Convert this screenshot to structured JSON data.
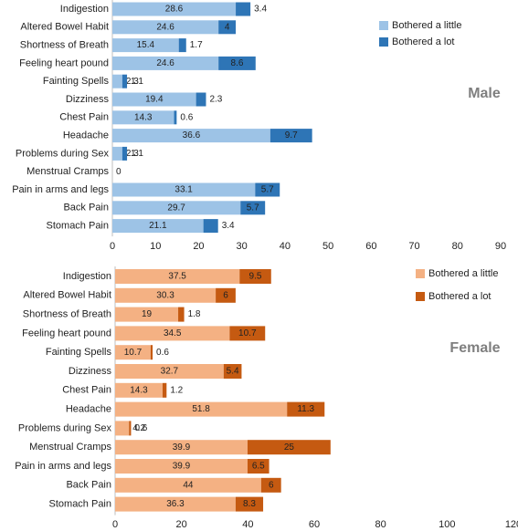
{
  "chart_data": [
    {
      "type": "bar",
      "orientation": "horizontal",
      "stacked": true,
      "annotation": "Male",
      "categories": [
        "Indigestion",
        "Altered Bowel Habit",
        "Shortness of Breath",
        "Feeling heart pound",
        "Fainting Spells",
        "Dizziness",
        "Chest Pain",
        "Headache",
        "Problems during Sex",
        "Menstrual Cramps",
        "Pain in arms and legs",
        "Back Pain",
        "Stomach Pain"
      ],
      "series": [
        {
          "name": "Bothered a little",
          "color": "#9dc3e6",
          "values": [
            28.6,
            24.6,
            15.4,
            24.6,
            2.3,
            19.4,
            14.3,
            36.6,
            2.3,
            0,
            33.1,
            29.7,
            21.1
          ]
        },
        {
          "name": "Bothered a lot",
          "color": "#2e75b6",
          "values": [
            3.4,
            4,
            1.7,
            8.6,
            1.1,
            2.3,
            0.6,
            9.7,
            1.1,
            null,
            5.7,
            5.7,
            3.4
          ]
        }
      ],
      "xlim": [
        0,
        90
      ],
      "xticks": [
        0,
        10,
        20,
        30,
        40,
        50,
        60,
        70,
        80,
        90
      ]
    },
    {
      "type": "bar",
      "orientation": "horizontal",
      "stacked": true,
      "annotation": "Female",
      "categories": [
        "Indigestion",
        "Altered Bowel Habit",
        "Shortness of Breath",
        "Feeling heart pound",
        "Fainting Spells",
        "Dizziness",
        "Chest Pain",
        "Headache",
        "Problems during Sex",
        "Menstrual Cramps",
        "Pain in arms and legs",
        "Back Pain",
        "Stomach Pain"
      ],
      "series": [
        {
          "name": "Bothered a little",
          "color": "#f4b183",
          "values": [
            37.5,
            30.3,
            19,
            34.5,
            10.7,
            32.7,
            14.3,
            51.8,
            4.2,
            39.9,
            39.9,
            44,
            36.3
          ]
        },
        {
          "name": "Bothered a lot",
          "color": "#c55a11",
          "values": [
            9.5,
            6,
            1.8,
            10.7,
            0.6,
            5.4,
            1.2,
            11.3,
            0.6,
            25,
            6.5,
            6,
            8.3
          ]
        }
      ],
      "xlim": [
        0,
        120
      ],
      "xticks": [
        0,
        20,
        40,
        60,
        80,
        100,
        120
      ]
    }
  ]
}
